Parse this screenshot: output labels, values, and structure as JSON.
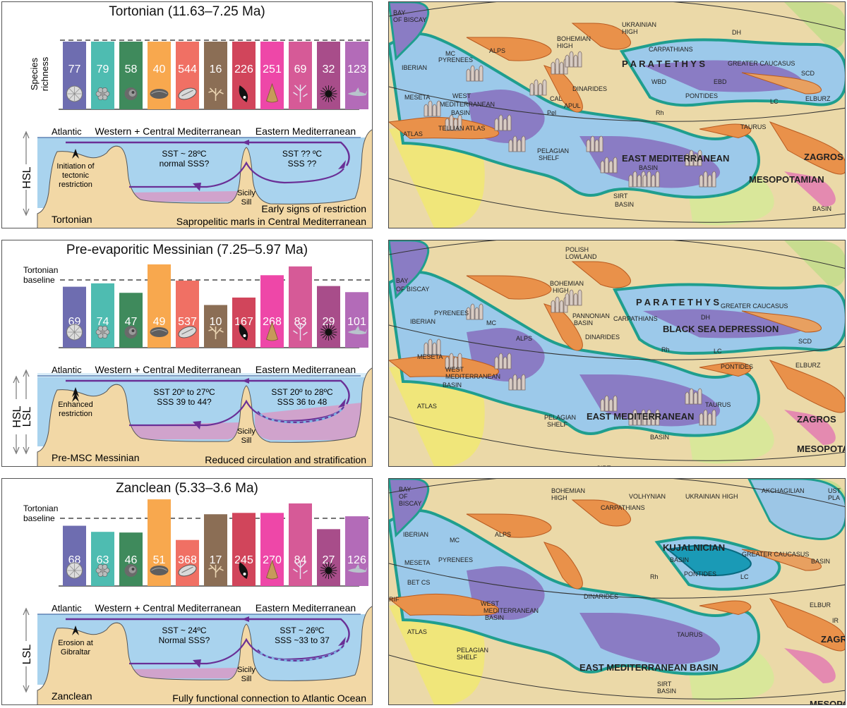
{
  "panels": [
    {
      "title": "Tortonian (11.63–7.25 Ma)",
      "y_axis_label": [
        "Species",
        "richness"
      ],
      "baseline_label": [
        "",
        ""
      ],
      "bars": [
        {
          "value": 77,
          "color": "#6e6db0",
          "fossil": "coral-disc-icon"
        },
        {
          "value": 79,
          "color": "#4ebcb1",
          "fossil": "bryozoan-icon"
        },
        {
          "value": 58,
          "color": "#3f8a5c",
          "fossil": "foraminifera-icon"
        },
        {
          "value": 40,
          "color": "#f8a84e",
          "fossil": "bivalve-icon"
        },
        {
          "value": 544,
          "color": "#f07064",
          "fossil": "gastropod-shell-icon"
        },
        {
          "value": 16,
          "color": "#8b6e55",
          "fossil": "branching-coral-icon"
        },
        {
          "value": 226,
          "color": "#d1455b",
          "fossil": "mussel-icon"
        },
        {
          "value": 251,
          "color": "#ee47a8",
          "fossil": "cone-shell-icon"
        },
        {
          "value": 69,
          "color": "#d65a97",
          "fossil": "crinoid-icon"
        },
        {
          "value": 32,
          "color": "#a84d8a",
          "fossil": "sea-urchin-icon"
        },
        {
          "value": 123,
          "color": "#b36bb8",
          "fossil": "shark-icon"
        }
      ],
      "bar_heights_fraction": [
        1,
        1,
        1,
        1,
        1,
        1,
        1,
        1,
        1,
        1,
        1
      ],
      "section": {
        "atlantic": "Atlantic",
        "west_label": "Western + Central Mediterranean",
        "east_label": "Eastern Mediterranean",
        "west_sst": "SST ~ 28ºC",
        "west_sss": "normal SSS?",
        "east_sst": "SST ?? ºC",
        "east_sss": "SSS ??",
        "gibraltar_note": [
          "Initiation of",
          "tectonic",
          "restriction"
        ],
        "sill": [
          "Sicily",
          "Sill"
        ],
        "sea_level": "HSL",
        "stage": "Tortonian",
        "caption_1": "Early signs of restriction",
        "caption_2": "Sapropelitic marls in Central Mediterranean"
      }
    },
    {
      "title": "Pre-evaporitic Messinian (7.25–5.97 Ma)",
      "y_axis_label": [
        "",
        ""
      ],
      "baseline_label": [
        "Tortonian",
        "baseline"
      ],
      "bars": [
        {
          "value": 69,
          "color": "#6e6db0",
          "fossil": "coral-disc-icon"
        },
        {
          "value": 74,
          "color": "#4ebcb1",
          "fossil": "bryozoan-icon"
        },
        {
          "value": 47,
          "color": "#3f8a5c",
          "fossil": "foraminifera-icon"
        },
        {
          "value": 49,
          "color": "#f8a84e",
          "fossil": "bivalve-icon"
        },
        {
          "value": 537,
          "color": "#f07064",
          "fossil": "gastropod-shell-icon"
        },
        {
          "value": 10,
          "color": "#8b6e55",
          "fossil": "branching-coral-icon"
        },
        {
          "value": 167,
          "color": "#d1455b",
          "fossil": "mussel-icon"
        },
        {
          "value": 268,
          "color": "#ee47a8",
          "fossil": "cone-shell-icon"
        },
        {
          "value": 83,
          "color": "#d65a97",
          "fossil": "crinoid-icon"
        },
        {
          "value": 29,
          "color": "#a84d8a",
          "fossil": "sea-urchin-icon"
        },
        {
          "value": 101,
          "color": "#b36bb8",
          "fossil": "shark-icon"
        }
      ],
      "bar_heights_fraction": [
        0.9,
        0.95,
        0.81,
        1.23,
        0.99,
        0.63,
        0.74,
        1.07,
        1.2,
        0.91,
        0.82
      ],
      "section": {
        "atlantic": "Atlantic",
        "west_label": "Western + Central Mediterranean",
        "east_label": "Eastern Mediterranean",
        "west_sst": "SST 20º to 27ºC",
        "west_sss": "SSS 39 to 44?",
        "east_sst": "SST 20º to 28ºC",
        "east_sss": "SSS 36 to 48",
        "gibraltar_note": [
          "Enhanced",
          "restriction",
          ""
        ],
        "sill": [
          "Sicily",
          "Sill"
        ],
        "sea_level": "HSL",
        "sea_level_2": "LSL",
        "stage": "Pre-MSC Messinian",
        "caption_1": "",
        "caption_2": "Reduced circulation and stratification"
      }
    },
    {
      "title": "Zanclean (5.33–3.6 Ma)",
      "y_axis_label": [
        "",
        ""
      ],
      "baseline_label": [
        "Tortonian",
        "baseline"
      ],
      "bars": [
        {
          "value": 68,
          "color": "#6e6db0",
          "fossil": "coral-disc-icon"
        },
        {
          "value": 63,
          "color": "#4ebcb1",
          "fossil": "bryozoan-icon"
        },
        {
          "value": 46,
          "color": "#3f8a5c",
          "fossil": "foraminifera-icon"
        },
        {
          "value": 51,
          "color": "#f8a84e",
          "fossil": "bivalve-icon"
        },
        {
          "value": 368,
          "color": "#f07064",
          "fossil": "gastropod-shell-icon"
        },
        {
          "value": 17,
          "color": "#8b6e55",
          "fossil": "branching-coral-icon"
        },
        {
          "value": 245,
          "color": "#d1455b",
          "fossil": "mussel-icon"
        },
        {
          "value": 270,
          "color": "#ee47a8",
          "fossil": "cone-shell-icon"
        },
        {
          "value": 84,
          "color": "#d65a97",
          "fossil": "crinoid-icon"
        },
        {
          "value": 27,
          "color": "#a84d8a",
          "fossil": "sea-urchin-icon"
        },
        {
          "value": 126,
          "color": "#b36bb8",
          "fossil": "shark-icon"
        }
      ],
      "bar_heights_fraction": [
        0.89,
        0.8,
        0.79,
        1.28,
        0.68,
        1.06,
        1.08,
        1.08,
        1.22,
        0.84,
        1.03
      ],
      "section": {
        "atlantic": "Atlantic",
        "west_label": "Western + Central Mediterranean",
        "east_label": "Eastern Mediterranean",
        "west_sst": "SST ~ 24ºC",
        "west_sss": "Normal SSS?",
        "east_sst": "SST ~ 26ºC",
        "east_sss": "SSS ~33 to 37",
        "gibraltar_note": [
          "Erosion at",
          "Gibraltar",
          ""
        ],
        "sill": [
          "Sicily",
          "Sill"
        ],
        "sea_level": "LSL",
        "stage": "Zanclean",
        "caption_1": "",
        "caption_2": "Fully functional connection to Atlantic Ocean"
      }
    }
  ],
  "maps": [
    {
      "labels": [
        "BAY",
        "OF BISCAY",
        "IBERIAN",
        "MESETA",
        "PYRENEES",
        "MC",
        "ALPS",
        "BOHEMIAN",
        "HIGH",
        "UKRAINIAN",
        "HIGH",
        "DH",
        "CARPATHIANS",
        "P A R A T E T H Y S",
        "GREATER CAUCASUS",
        "WBD",
        "EBD",
        "SCD",
        "Rh",
        "PONTIDES",
        "LC",
        "ELBURZ",
        "DINARIDES",
        "CAL",
        "Pel",
        "APUL",
        "WEST",
        "MEDITERRANEAN",
        "BASIN",
        "ATLAS",
        "TELLIAN ATLAS",
        "PELAGIAN",
        "SHELF",
        "EAST MEDITERRANEAN",
        "BASIN",
        "TAURUS",
        "ZAGROS",
        "MESOPOTAMIAN",
        "BASIN",
        "SIRT",
        "BASIN"
      ],
      "reef_count": 14
    },
    {
      "labels": [
        "POLISH",
        "LOWLAND",
        "BAY",
        "OF BISCAY",
        "IBERIAN",
        "MESETA",
        "PYRENEES",
        "MC",
        "ALPS",
        "BOHEMIAN",
        "HIGH",
        "PANNONIAN",
        "BASIN",
        "CARPATHIANS",
        "DH",
        "P A R A T E T H Y S",
        "GREATER CAUCASUS",
        "BLACK SEA DEPRESSION",
        "LC",
        "SCD",
        "Rh",
        "PONTIDES",
        "ELBURZ",
        "DINARIDES",
        "WEST",
        "MEDITERRANEAN",
        "BASIN",
        "ATLAS",
        "PELAGIAN",
        "SHELF",
        "EAST MEDITERRANEAN",
        "BASIN",
        "TAURUS",
        "ZAGROS",
        "MESOPOTA",
        "SIRT"
      ],
      "reef_count": 12
    },
    {
      "labels": [
        "BAY",
        "OF",
        "BISCAY",
        "BOHEMIAN",
        "HIGH",
        "VOLHYNIAN",
        "UKRAINIAN",
        "HIGH",
        "AKCHAGILIAN",
        "UST",
        "PLA",
        "IBERIAN",
        "MESETA",
        "BET CS",
        "RIF",
        "PYRENEES",
        "MC",
        "ALPS",
        "CARPATHIANS",
        "GREATER CAUCASUS",
        "BASIN",
        "KUJALNICIAN",
        "BASIN",
        "PONTIDES",
        "LC",
        "Rh",
        "ELBUR",
        "WEST",
        "MEDITERRANEAN",
        "BASIN",
        "DINARIDES",
        "ATLAS",
        "PELAGIAN",
        "SHELF",
        "EAST MEDITERRANEAN BASIN",
        "TAURUS",
        "ZAGRO",
        "IR",
        "SIRT",
        "BASIN",
        "MESOPOT"
      ],
      "reef_count": 0
    }
  ],
  "colors": {
    "sea": "#a9d3ee",
    "sea_deep": "#7eb6e4",
    "stratified": "#d79ac5",
    "land": "#f2d8a6",
    "current": "#6a2f96",
    "map_land": "#ebd9a8",
    "map_sea": "#9cc9ea",
    "map_deep": "#8a7cc4",
    "map_orange": "#e9914a",
    "map_green": "#1f9e8e"
  }
}
